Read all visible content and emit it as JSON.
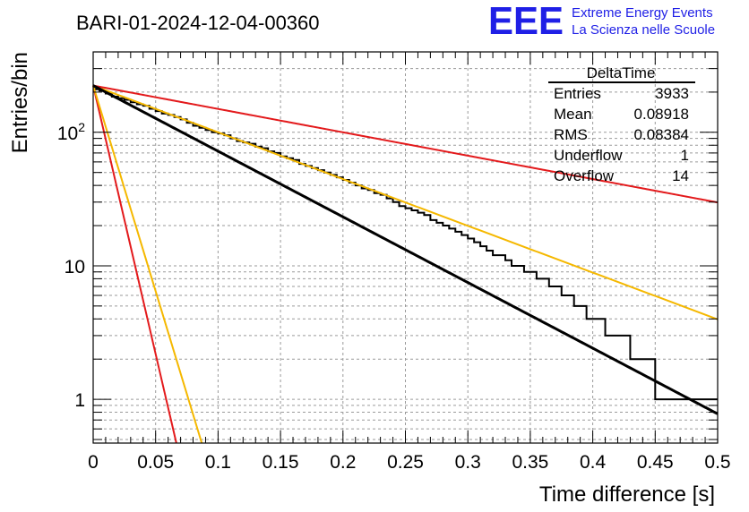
{
  "chart_data": {
    "type": "histogram",
    "title": "BARI-01-2024-12-04-00360",
    "xlabel": "Time difference [s]",
    "ylabel": "Entries/bin",
    "xlim": [
      0,
      0.5
    ],
    "ylim": [
      0.47,
      400
    ],
    "yscale": "log",
    "bin_width": 0.005,
    "x_ticks": [
      "0",
      "0.05",
      "0.1",
      "0.15",
      "0.2",
      "0.25",
      "0.3",
      "0.35",
      "0.4",
      "0.45",
      "0.5"
    ],
    "y_ticks": [
      {
        "base": "1",
        "exp": ""
      },
      {
        "base": "10",
        "exp": ""
      },
      {
        "base": "10",
        "exp": "2"
      }
    ],
    "grid": true,
    "histogram_counts": [
      210,
      205,
      195,
      185,
      180,
      175,
      168,
      162,
      158,
      150,
      144,
      138,
      135,
      130,
      125,
      118,
      112,
      108,
      104,
      100,
      98,
      95,
      90,
      86,
      84,
      82,
      78,
      76,
      72,
      70,
      66,
      64,
      62,
      58,
      56,
      54,
      52,
      50,
      48,
      46,
      44,
      42,
      40,
      38,
      37,
      35,
      34,
      32,
      30,
      28,
      27,
      26,
      25,
      24,
      22,
      21,
      20,
      19,
      18,
      17,
      16,
      15,
      14,
      13,
      12,
      12,
      11,
      10,
      10,
      9,
      9,
      8,
      8,
      7,
      7,
      6,
      6,
      5,
      5,
      4,
      4,
      4,
      3,
      3,
      3,
      3,
      2,
      2,
      2,
      2,
      1,
      1,
      1,
      1,
      1,
      1,
      1,
      1,
      1,
      1
    ],
    "fit": {
      "name": "total fit",
      "color": "#000000",
      "A": 224,
      "tau": 0.0883
    },
    "reference_lines": [
      {
        "name": "red-steep",
        "color": "#e31a1c",
        "A": 224,
        "tau": 0.0108
      },
      {
        "name": "yellow-steep",
        "color": "#f5b800",
        "A": 224,
        "tau": 0.0141
      },
      {
        "name": "yellow-shallow",
        "color": "#f5b800",
        "A": 224,
        "tau": 0.124
      },
      {
        "name": "red-shallow",
        "color": "#e31a1c",
        "A": 224,
        "tau": 0.248
      }
    ],
    "stats_box": {
      "name": "DeltaTime",
      "rows": [
        {
          "label": "Entries",
          "value": "3933"
        },
        {
          "label": "Mean",
          "value": "0.08918"
        },
        {
          "label": "RMS",
          "value": "0.08384"
        },
        {
          "label": "Underflow",
          "value": "1"
        },
        {
          "label": "Overflow",
          "value": "14"
        }
      ]
    }
  },
  "logo": {
    "mark": "EEE",
    "line1": "Extreme Energy Events",
    "line2": "La Scienza nelle Scuole",
    "color": "#1f1fe6"
  }
}
